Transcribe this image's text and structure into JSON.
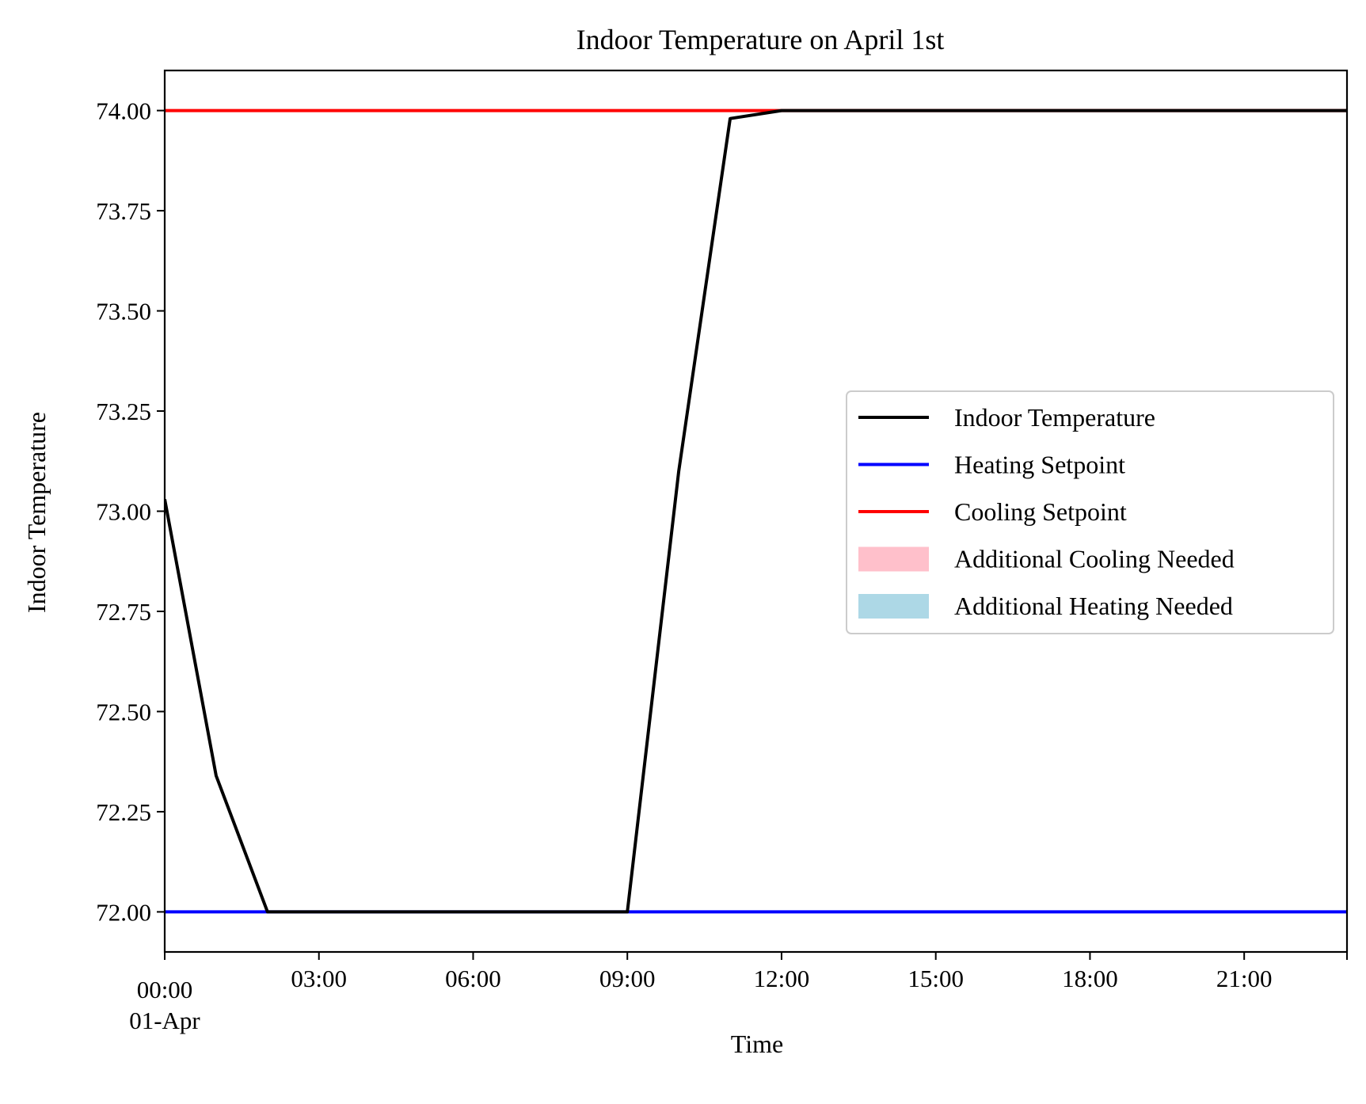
{
  "chart_data": {
    "type": "line",
    "title": "Indoor Temperature on April 1st",
    "xlabel": "Time",
    "ylabel": "Indoor Temperature",
    "x_unit": "hour of day, 01-Apr",
    "xlim": [
      0,
      23
    ],
    "ylim": [
      71.9,
      74.1
    ],
    "x_ticks": [
      {
        "value": 0,
        "label": "00:00",
        "sublabel": "01-Apr"
      },
      {
        "value": 3,
        "label": "03:00"
      },
      {
        "value": 6,
        "label": "06:00"
      },
      {
        "value": 9,
        "label": "09:00"
      },
      {
        "value": 12,
        "label": "12:00"
      },
      {
        "value": 15,
        "label": "15:00"
      },
      {
        "value": 18,
        "label": "18:00"
      },
      {
        "value": 21,
        "label": "21:00"
      }
    ],
    "y_ticks": [
      {
        "value": 72.0,
        "label": "72.00"
      },
      {
        "value": 72.25,
        "label": "72.25"
      },
      {
        "value": 72.5,
        "label": "72.50"
      },
      {
        "value": 72.75,
        "label": "72.75"
      },
      {
        "value": 73.0,
        "label": "73.00"
      },
      {
        "value": 73.25,
        "label": "73.25"
      },
      {
        "value": 73.5,
        "label": "73.50"
      },
      {
        "value": 73.75,
        "label": "73.75"
      },
      {
        "value": 74.0,
        "label": "74.00"
      }
    ],
    "grid": false,
    "legend_position": "center-right",
    "series": [
      {
        "name": "Indoor Temperature",
        "color": "#000000",
        "x": [
          0,
          1,
          2,
          3,
          4,
          5,
          6,
          7,
          8,
          9,
          10,
          11,
          12,
          13,
          14,
          15,
          16,
          17,
          18,
          19,
          20,
          21,
          22,
          23
        ],
        "y": [
          73.03,
          72.34,
          72.0,
          72.0,
          72.0,
          72.0,
          72.0,
          72.0,
          72.0,
          72.0,
          73.1,
          73.98,
          74.0,
          74.0,
          74.0,
          74.0,
          74.0,
          74.0,
          74.0,
          74.0,
          74.0,
          74.0,
          74.0,
          74.0
        ]
      },
      {
        "name": "Heating Setpoint",
        "color": "#0000ff",
        "x": [
          0,
          1,
          2,
          3,
          4,
          5,
          6,
          7,
          8,
          9,
          10,
          11,
          12,
          13,
          14,
          15,
          16,
          17,
          18,
          19,
          20,
          21,
          22,
          23
        ],
        "y": [
          72,
          72,
          72,
          72,
          72,
          72,
          72,
          72,
          72,
          72,
          72,
          72,
          72,
          72,
          72,
          72,
          72,
          72,
          72,
          72,
          72,
          72,
          72,
          72
        ]
      },
      {
        "name": "Cooling Setpoint",
        "color": "#ff0000",
        "x": [
          0,
          1,
          2,
          3,
          4,
          5,
          6,
          7,
          8,
          9,
          10,
          11,
          12,
          13,
          14,
          15,
          16,
          17,
          18,
          19,
          20,
          21,
          22,
          23
        ],
        "y": [
          74,
          74,
          74,
          74,
          74,
          74,
          74,
          74,
          74,
          74,
          74,
          74,
          74,
          74,
          74,
          74,
          74,
          74,
          74,
          74,
          74,
          74,
          74,
          74
        ]
      }
    ],
    "legend": [
      {
        "label": "Indoor Temperature",
        "kind": "line",
        "color": "#000000"
      },
      {
        "label": "Heating Setpoint",
        "kind": "line",
        "color": "#0000ff"
      },
      {
        "label": "Cooling Setpoint",
        "kind": "line",
        "color": "#ff0000"
      },
      {
        "label": "Additional Cooling Needed",
        "kind": "patch",
        "color": "#ffc0cb"
      },
      {
        "label": "Additional Heating Needed",
        "kind": "patch",
        "color": "#add8e6"
      }
    ]
  }
}
